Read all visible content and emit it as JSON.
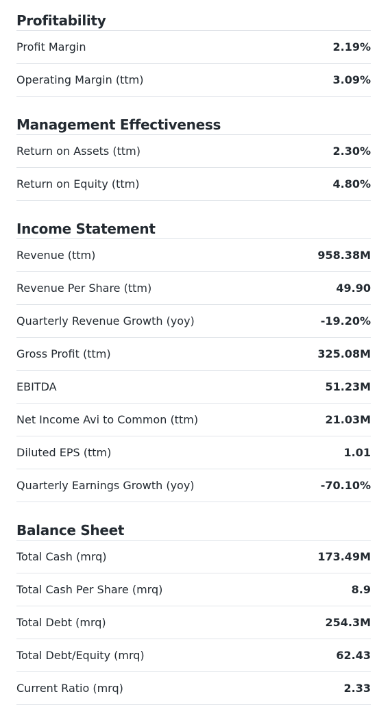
{
  "sections": [
    {
      "title": "Profitability",
      "rows": [
        {
          "label": "Profit Margin",
          "value": "2.19%"
        },
        {
          "label": "Operating Margin (ttm)",
          "value": "3.09%"
        }
      ]
    },
    {
      "title": "Management Effectiveness",
      "rows": [
        {
          "label": "Return on Assets (ttm)",
          "value": "2.30%"
        },
        {
          "label": "Return on Equity (ttm)",
          "value": "4.80%"
        }
      ]
    },
    {
      "title": "Income Statement",
      "rows": [
        {
          "label": "Revenue (ttm)",
          "value": "958.38M"
        },
        {
          "label": "Revenue Per Share (ttm)",
          "value": "49.90"
        },
        {
          "label": "Quarterly Revenue Growth (yoy)",
          "value": "-19.20%"
        },
        {
          "label": "Gross Profit (ttm)",
          "value": "325.08M"
        },
        {
          "label": "EBITDA",
          "value": "51.23M"
        },
        {
          "label": "Net Income Avi to Common (ttm)",
          "value": "21.03M"
        },
        {
          "label": "Diluted EPS (ttm)",
          "value": "1.01"
        },
        {
          "label": "Quarterly Earnings Growth (yoy)",
          "value": "-70.10%"
        }
      ]
    },
    {
      "title": "Balance Sheet",
      "rows": [
        {
          "label": "Total Cash (mrq)",
          "value": "173.49M"
        },
        {
          "label": "Total Cash Per Share (mrq)",
          "value": "8.9"
        },
        {
          "label": "Total Debt (mrq)",
          "value": "254.3M"
        },
        {
          "label": "Total Debt/Equity (mrq)",
          "value": "62.43"
        },
        {
          "label": "Current Ratio (mrq)",
          "value": "2.33"
        }
      ]
    }
  ]
}
